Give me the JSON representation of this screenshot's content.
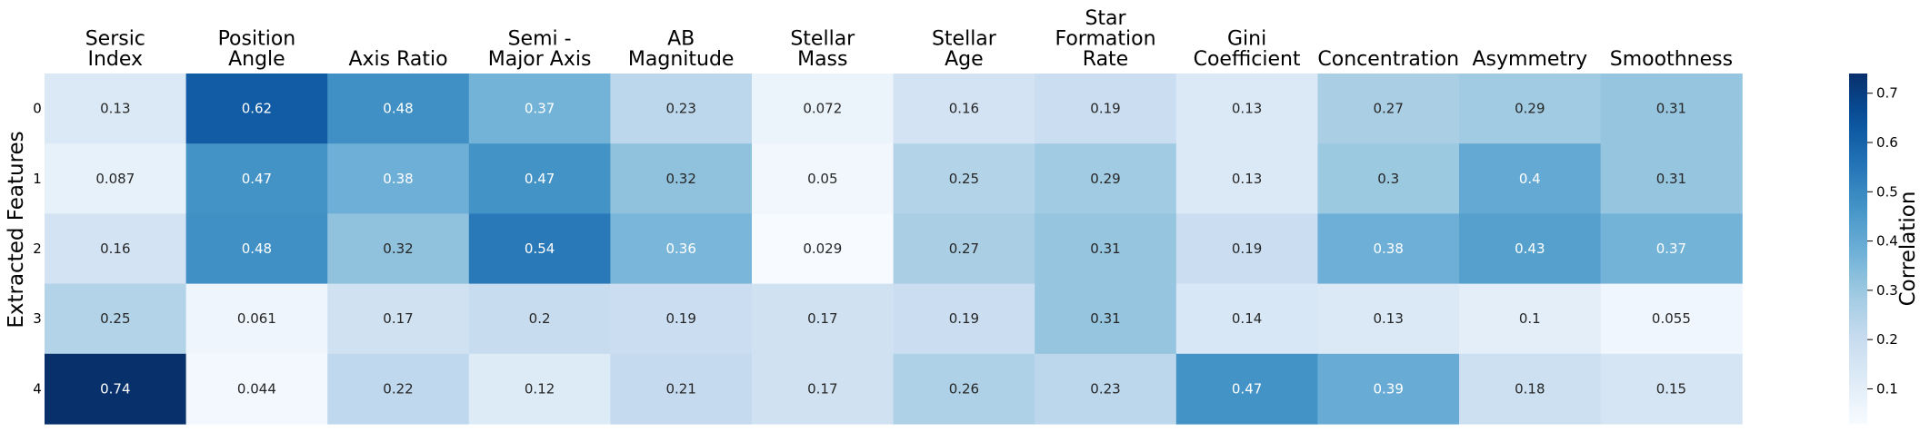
{
  "chart_data": {
    "type": "heatmap",
    "columns": [
      "Sersic Index",
      "Position Angle",
      "Axis Ratio",
      "Semi - Major Axis",
      "AB Magnitude",
      "Stellar Mass",
      "Stellar Age",
      "Star Formation Rate",
      "Gini Coefficient",
      "Concentration",
      "Asymmetry",
      "Smoothness"
    ],
    "rows": [
      "0",
      "1",
      "2",
      "3",
      "4"
    ],
    "ylabel": "Extracted Features",
    "values": [
      [
        0.13,
        0.62,
        0.48,
        0.37,
        0.23,
        0.072,
        0.16,
        0.19,
        0.13,
        0.27,
        0.29,
        0.31
      ],
      [
        0.087,
        0.47,
        0.38,
        0.47,
        0.32,
        0.05,
        0.25,
        0.29,
        0.13,
        0.3,
        0.4,
        0.31
      ],
      [
        0.16,
        0.48,
        0.32,
        0.54,
        0.36,
        0.029,
        0.27,
        0.31,
        0.19,
        0.38,
        0.43,
        0.37
      ],
      [
        0.25,
        0.061,
        0.17,
        0.2,
        0.19,
        0.17,
        0.19,
        0.31,
        0.14,
        0.13,
        0.1,
        0.055
      ],
      [
        0.74,
        0.044,
        0.22,
        0.12,
        0.21,
        0.17,
        0.26,
        0.23,
        0.47,
        0.39,
        0.18,
        0.15
      ]
    ],
    "colorbar": {
      "label": "Correlation",
      "colormap": "Blues",
      "min": 0.029,
      "max": 0.74,
      "ticks": [
        0.1,
        0.2,
        0.3,
        0.4,
        0.5,
        0.6,
        0.7
      ]
    }
  }
}
